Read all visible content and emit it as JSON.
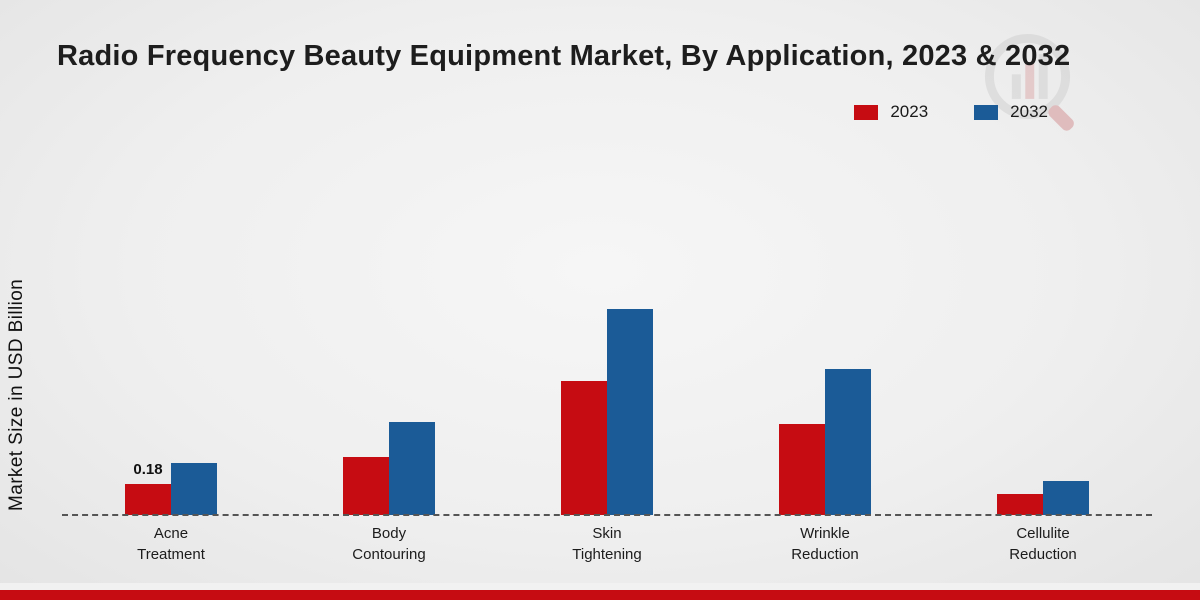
{
  "chart_data": {
    "type": "bar",
    "title": "Radio Frequency Beauty Equipment Market, By Application, 2023 & 2032",
    "ylabel": "Market Size in USD Billion",
    "xlabel": "",
    "ylim": [
      0,
      1.3
    ],
    "grid": false,
    "legend_position": "top-right",
    "baseline_style": "dashed",
    "categories": [
      "Acne\nTreatment",
      "Body\nContouring",
      "Skin\nTightening",
      "Wrinkle\nReduction",
      "Cellulite\nReduction"
    ],
    "series": [
      {
        "name": "2023",
        "color": "#c60c12",
        "values": [
          0.18,
          0.34,
          0.78,
          0.53,
          0.12
        ]
      },
      {
        "name": "2032",
        "color": "#1b5b97",
        "values": [
          0.3,
          0.54,
          1.2,
          0.85,
          0.2
        ]
      }
    ],
    "data_labels": [
      {
        "series": "2023",
        "category_index": 0,
        "text": "0.18"
      }
    ],
    "colors": {
      "series_2023": "#c60c12",
      "series_2032": "#1b5b97",
      "footer_strip": "#c60c12",
      "baseline": "#555555"
    }
  }
}
